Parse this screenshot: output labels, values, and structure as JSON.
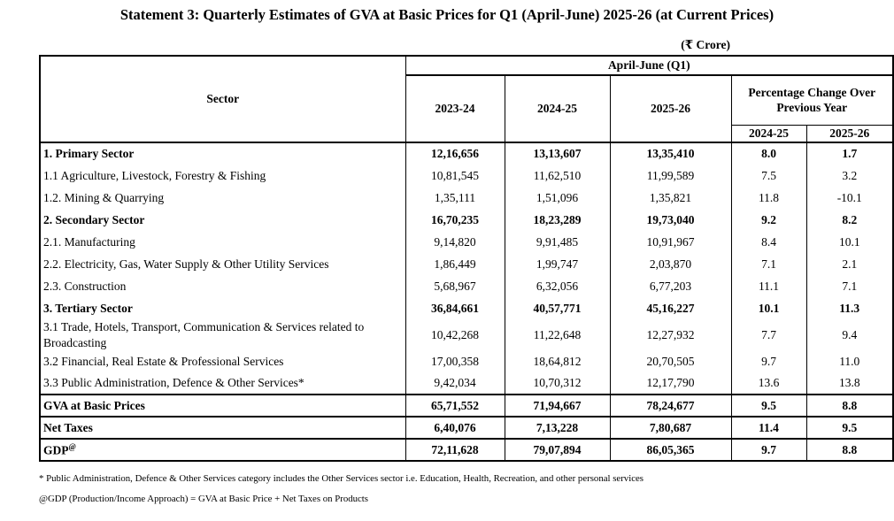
{
  "title": "Statement 3: Quarterly Estimates of GVA at Basic Prices for Q1 (April-June) 2025-26 (at Current Prices)",
  "unit_label": "(₹ Crore)",
  "table": {
    "sector_header": "Sector",
    "quarter_header": "April-June (Q1)",
    "year_headers": [
      "2023-24",
      "2024-25",
      "2025-26"
    ],
    "pct_change_header": "Percentage Change Over Previous Year",
    "pct_year_headers": [
      "2024-25",
      "2025-26"
    ],
    "rows": [
      {
        "type": "major",
        "sector": "1. Primary Sector",
        "values": [
          "12,16,656",
          "13,13,607",
          "13,35,410"
        ],
        "pct": [
          "8.0",
          "1.7"
        ]
      },
      {
        "type": "sub",
        "sector": "1.1 Agriculture, Livestock, Forestry & Fishing",
        "values": [
          "10,81,545",
          "11,62,510",
          "11,99,589"
        ],
        "pct": [
          "7.5",
          "3.2"
        ]
      },
      {
        "type": "sub",
        "sector": "1.2. Mining & Quarrying",
        "values": [
          "1,35,111",
          "1,51,096",
          "1,35,821"
        ],
        "pct": [
          "11.8",
          "-10.1"
        ]
      },
      {
        "type": "major",
        "sector": "2. Secondary Sector",
        "values": [
          "16,70,235",
          "18,23,289",
          "19,73,040"
        ],
        "pct": [
          "9.2",
          "8.2"
        ]
      },
      {
        "type": "sub",
        "sector": "2.1. Manufacturing",
        "values": [
          "9,14,820",
          "9,91,485",
          "10,91,967"
        ],
        "pct": [
          "8.4",
          "10.1"
        ]
      },
      {
        "type": "sub",
        "sector": "2.2. Electricity, Gas, Water Supply & Other Utility Services",
        "values": [
          "1,86,449",
          "1,99,747",
          "2,03,870"
        ],
        "pct": [
          "7.1",
          "2.1"
        ]
      },
      {
        "type": "sub",
        "sector": "2.3. Construction",
        "values": [
          "5,68,967",
          "6,32,056",
          "6,77,203"
        ],
        "pct": [
          "11.1",
          "7.1"
        ]
      },
      {
        "type": "major",
        "sector": "3. Tertiary Sector",
        "values": [
          "36,84,661",
          "40,57,771",
          "45,16,227"
        ],
        "pct": [
          "10.1",
          "11.3"
        ]
      },
      {
        "type": "sub",
        "sector": "3.1 Trade, Hotels, Transport, Communication & Services related to Broadcasting",
        "values": [
          "10,42,268",
          "11,22,648",
          "12,27,932"
        ],
        "pct": [
          "7.7",
          "9.4"
        ]
      },
      {
        "type": "sub",
        "sector": "3.2 Financial, Real Estate & Professional Services",
        "values": [
          "17,00,358",
          "18,64,812",
          "20,70,505"
        ],
        "pct": [
          "9.7",
          "11.0"
        ]
      },
      {
        "type": "sub",
        "sector": "3.3 Public Administration, Defence & Other Services*",
        "values": [
          "9,42,034",
          "10,70,312",
          "12,17,790"
        ],
        "pct": [
          "13.6",
          "13.8"
        ]
      },
      {
        "type": "total",
        "sector": "GVA at Basic Prices",
        "values": [
          "65,71,552",
          "71,94,667",
          "78,24,677"
        ],
        "pct": [
          "9.5",
          "8.8"
        ]
      },
      {
        "type": "total",
        "sector": "Net Taxes",
        "values": [
          "6,40,076",
          "7,13,228",
          "7,80,687"
        ],
        "pct": [
          "11.4",
          "9.5"
        ]
      },
      {
        "type": "total",
        "sector": "GDP",
        "sector_sup": "@",
        "values": [
          "72,11,628",
          "79,07,894",
          "86,05,365"
        ],
        "pct": [
          "9.7",
          "8.8"
        ]
      }
    ]
  },
  "footnotes": [
    "* Public Administration, Defence & Other Services category includes the Other Services sector i.e. Education, Health, Recreation, and other personal services",
    "@GDP (Production/Income Approach) = GVA at Basic Price + Net Taxes on Products"
  ]
}
